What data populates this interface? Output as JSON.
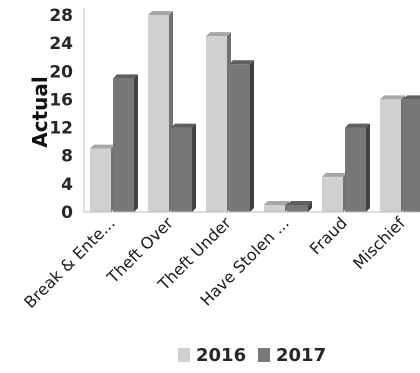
{
  "chart_data": {
    "type": "bar",
    "title": "",
    "xlabel": "",
    "ylabel": "Actual",
    "ylim": [
      0,
      28
    ],
    "yticks": [
      0,
      4,
      8,
      12,
      16,
      20,
      24,
      28
    ],
    "grid": false,
    "legend_position": "bottom",
    "categories": [
      "Break & Ente...",
      "Theft Over",
      "Theft Under",
      "Have Stolen ...",
      "Fraud",
      "Mischief"
    ],
    "series": [
      {
        "name": "2016",
        "color": "#d0d0d0",
        "values": [
          9,
          28,
          25,
          1,
          5,
          16
        ]
      },
      {
        "name": "2017",
        "color": "#777777",
        "values": [
          19,
          12,
          21,
          1,
          12,
          16
        ]
      }
    ]
  }
}
